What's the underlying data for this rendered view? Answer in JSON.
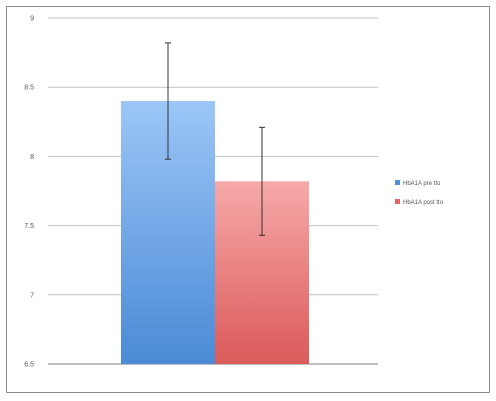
{
  "chart_data": {
    "type": "bar",
    "title": "",
    "xlabel": "",
    "ylabel": "",
    "ylim": [
      6.5,
      9
    ],
    "yticks": [
      "9",
      "8.5",
      "8",
      "7.5",
      "7",
      "6.5"
    ],
    "grid": true,
    "legend_position": "right",
    "series": [
      {
        "name": "HbA1A pre tto",
        "value": 8.4,
        "error": 0.42,
        "color": "#4f90d9"
      },
      {
        "name": "HbA1A post tto",
        "value": 7.82,
        "error": 0.39,
        "color": "#e06464"
      }
    ]
  }
}
